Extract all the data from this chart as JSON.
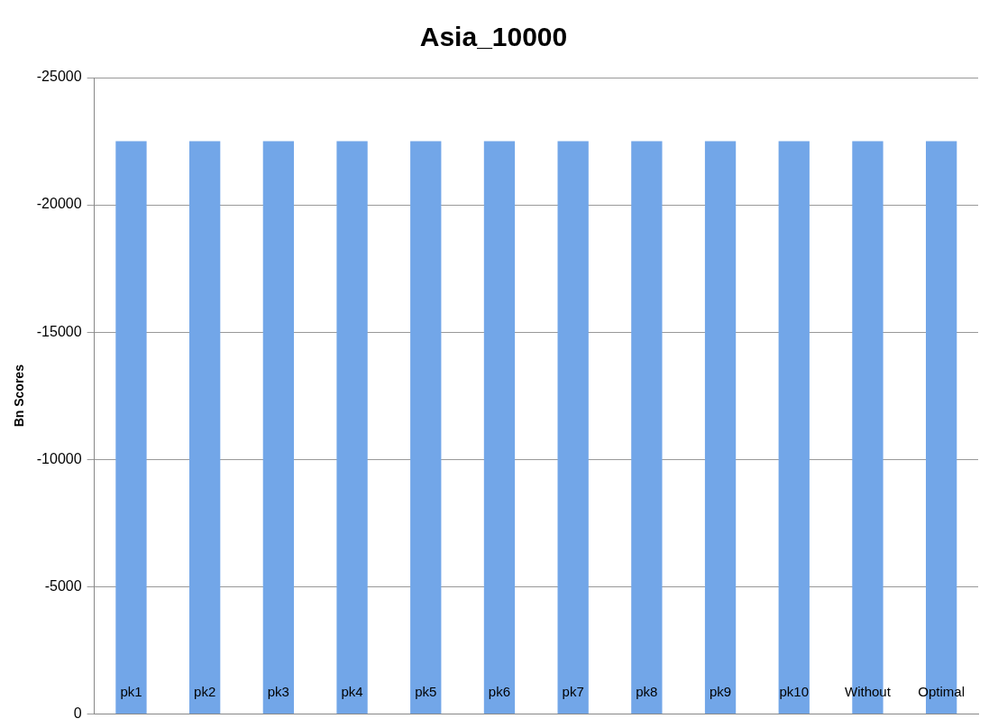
{
  "chart_data": {
    "type": "bar",
    "title": "Asia_10000",
    "ylabel": "Bn Scores",
    "categories": [
      "pk1",
      "pk2",
      "pk3",
      "pk4",
      "pk5",
      "pk6",
      "pk7",
      "pk8",
      "pk9",
      "pk10",
      "Without",
      "Optimal"
    ],
    "values": [
      -22500,
      -22500,
      -22500,
      -22500,
      -22500,
      -22500,
      -22500,
      -22500,
      -22500,
      -22500,
      -22500,
      -22500
    ],
    "color": "#72a6e8",
    "ylim": [
      0,
      -25000
    ],
    "yticks": [
      0,
      -5000,
      -10000,
      -15000,
      -20000,
      -25000
    ],
    "grid": "y",
    "legend": false
  }
}
